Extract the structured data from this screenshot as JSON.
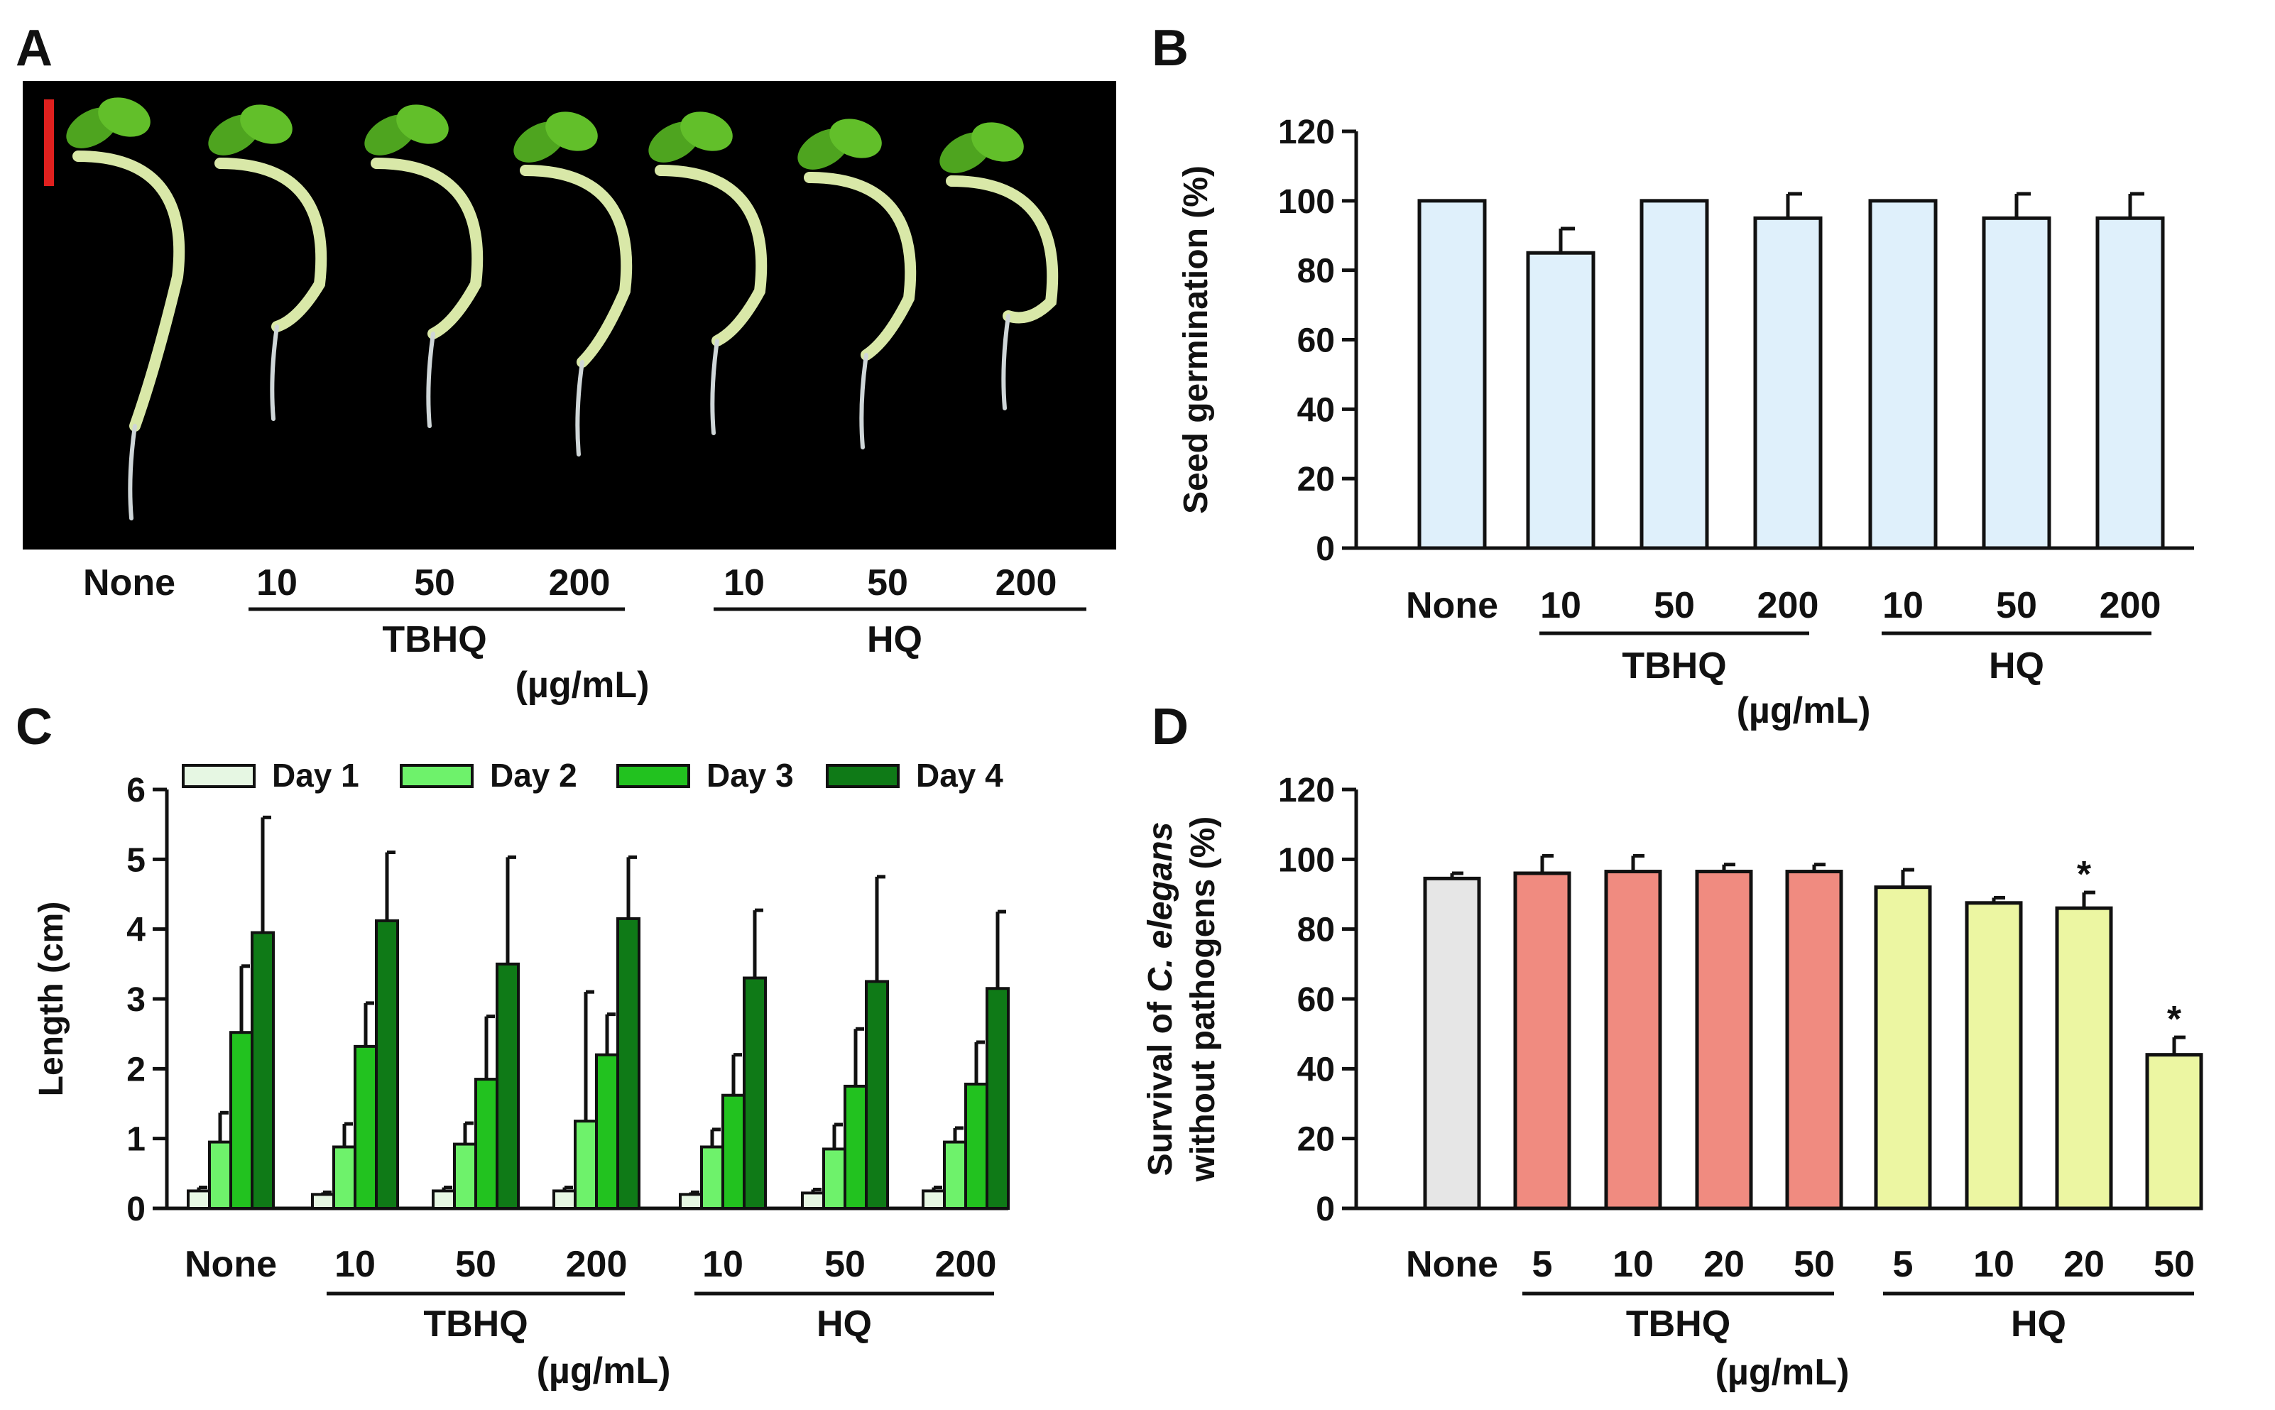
{
  "panels": {
    "A": {
      "letter": "A",
      "photo": "seedlings-on-black-background",
      "categories": [
        "None",
        "10",
        "50",
        "200",
        "10",
        "50",
        "200"
      ],
      "groups": [
        "TBHQ",
        "HQ"
      ],
      "unit": "(µg/mL)"
    },
    "B": {
      "letter": "B",
      "unit": "(µg/mL)"
    },
    "C": {
      "letter": "C",
      "unit": "(µg/mL)"
    },
    "D": {
      "letter": "D",
      "unit": "(µg/mL)",
      "ylabel_parts": {
        "line1_prefix": "Survival of ",
        "line1_italic": "C. elegans",
        "line2": "without pathogens (%)"
      }
    }
  },
  "colors": {
    "bar_outline": "#111111",
    "B_bar_fill": "#dff0fb",
    "C_day1": "#e6f7e3",
    "C_day2": "#6ef26b",
    "C_day3": "#22c21f",
    "C_day4": "#0f7a17",
    "D_none": "#e6e6e6",
    "D_tbhq": "#f08b80",
    "D_hq": "#ecf6a2",
    "scale_bar": "#e0201e",
    "photo_bg": "#000000"
  },
  "chart_data": [
    {
      "panel": "B",
      "type": "bar",
      "categories": [
        "None",
        "10",
        "50",
        "200",
        "10",
        "50",
        "200"
      ],
      "groups": [
        {
          "label": "TBHQ",
          "from": 1,
          "to": 3
        },
        {
          "label": "HQ",
          "from": 4,
          "to": 6
        }
      ],
      "values": [
        100,
        85,
        100,
        95,
        100,
        95,
        95
      ],
      "errors": [
        0,
        7,
        0,
        7,
        0,
        7,
        7
      ],
      "ylabel": "Seed germination (%)",
      "ylim": [
        0,
        120
      ],
      "yticks": [
        0,
        20,
        40,
        60,
        80,
        100,
        120
      ]
    },
    {
      "panel": "C",
      "type": "bar",
      "categories": [
        "None",
        "10",
        "50",
        "200",
        "10",
        "50",
        "200"
      ],
      "groups": [
        {
          "label": "TBHQ",
          "from": 1,
          "to": 3
        },
        {
          "label": "HQ",
          "from": 4,
          "to": 6
        }
      ],
      "series": [
        {
          "name": "Day 1",
          "values": [
            0.25,
            0.2,
            0.25,
            0.25,
            0.2,
            0.22,
            0.25
          ],
          "errors": [
            0.05,
            0.03,
            0.05,
            0.05,
            0.03,
            0.05,
            0.05
          ]
        },
        {
          "name": "Day 2",
          "values": [
            0.95,
            0.88,
            0.92,
            1.25,
            0.88,
            0.85,
            0.95
          ],
          "errors": [
            0.42,
            0.33,
            0.3,
            1.85,
            0.25,
            0.35,
            0.2
          ]
        },
        {
          "name": "Day 3",
          "values": [
            2.52,
            2.32,
            1.85,
            2.2,
            1.62,
            1.75,
            1.78
          ],
          "errors": [
            0.95,
            0.62,
            0.9,
            0.58,
            0.58,
            0.82,
            0.6
          ]
        },
        {
          "name": "Day 4",
          "values": [
            3.95,
            4.12,
            3.5,
            4.15,
            3.3,
            3.25,
            3.15
          ],
          "errors": [
            1.65,
            0.98,
            1.53,
            0.88,
            0.97,
            1.5,
            1.1
          ]
        }
      ],
      "ylabel": "Length (cm)",
      "ylim": [
        0,
        6
      ],
      "yticks": [
        0,
        1,
        2,
        3,
        4,
        5,
        6
      ],
      "legend": "top"
    },
    {
      "panel": "D",
      "type": "bar",
      "categories": [
        "None",
        "5",
        "10",
        "20",
        "50",
        "5",
        "10",
        "20",
        "50"
      ],
      "groups": [
        {
          "label": "TBHQ",
          "from": 1,
          "to": 4
        },
        {
          "label": "HQ",
          "from": 5,
          "to": 8
        }
      ],
      "values": [
        94.5,
        96,
        96.5,
        96.5,
        96.5,
        92,
        87.5,
        86,
        44
      ],
      "errors": [
        1.5,
        5,
        4.5,
        2,
        2,
        5,
        1.5,
        4.5,
        5
      ],
      "significance": [
        "",
        "",
        "",
        "",
        "",
        "",
        "",
        "*",
        "*"
      ],
      "ylabel": "Survival of C. elegans without pathogens (%)",
      "ylim": [
        0,
        120
      ],
      "yticks": [
        0,
        20,
        40,
        60,
        80,
        100,
        120
      ]
    }
  ]
}
